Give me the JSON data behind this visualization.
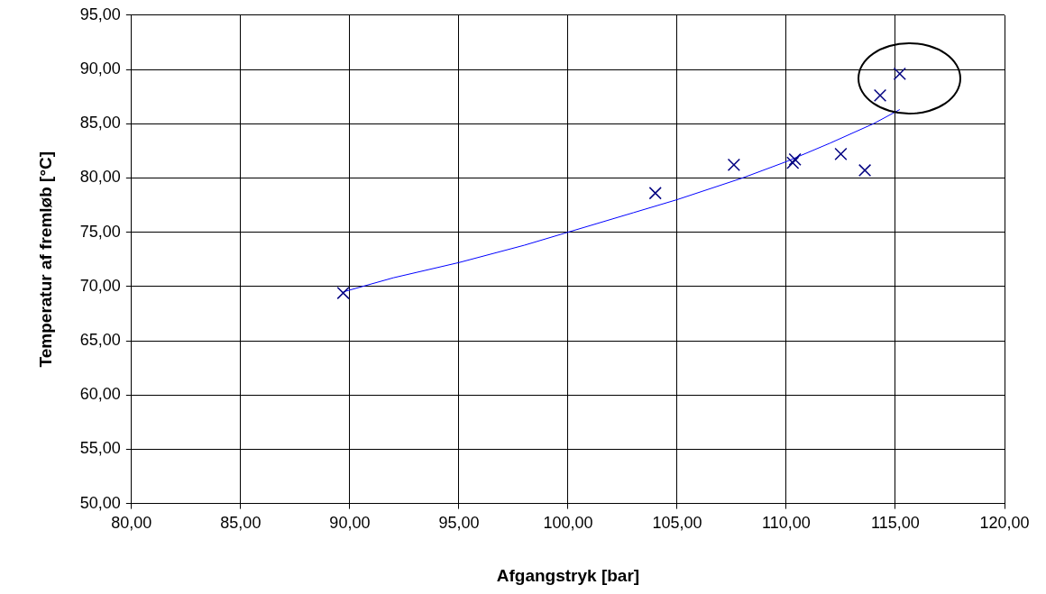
{
  "chart_data": {
    "type": "scatter",
    "xlabel": "Afgangstryk [bar]",
    "ylabel": "Temperatur af fremløb [°C]",
    "xlim": [
      80,
      120
    ],
    "ylim": [
      50,
      95
    ],
    "xticks": [
      {
        "value": 80,
        "label": "80,00"
      },
      {
        "value": 85,
        "label": "85,00"
      },
      {
        "value": 90,
        "label": "90,00"
      },
      {
        "value": 95,
        "label": "95,00"
      },
      {
        "value": 100,
        "label": "100,00"
      },
      {
        "value": 105,
        "label": "105,00"
      },
      {
        "value": 110,
        "label": "110,00"
      },
      {
        "value": 115,
        "label": "115,00"
      },
      {
        "value": 120,
        "label": "120,00"
      }
    ],
    "yticks": [
      {
        "value": 50,
        "label": "50,00"
      },
      {
        "value": 55,
        "label": "55,00"
      },
      {
        "value": 60,
        "label": "60,00"
      },
      {
        "value": 65,
        "label": "65,00"
      },
      {
        "value": 70,
        "label": "70,00"
      },
      {
        "value": 75,
        "label": "75,00"
      },
      {
        "value": 80,
        "label": "80,00"
      },
      {
        "value": 85,
        "label": "85,00"
      },
      {
        "value": 90,
        "label": "90,00"
      },
      {
        "value": 95,
        "label": "95,00"
      }
    ],
    "grid": true,
    "legend": false,
    "series": [
      {
        "type": "scatter",
        "color": "#000080",
        "marker": "cross",
        "x": [
          89.7,
          104.0,
          107.6,
          110.3,
          110.4,
          112.5,
          113.6,
          114.3,
          115.2
        ],
        "values": [
          69.4,
          78.6,
          81.2,
          81.4,
          81.7,
          82.2,
          80.7,
          87.6,
          89.6
        ]
      },
      {
        "type": "line",
        "color": "#0000ff",
        "marker": "none",
        "line_style": "solid",
        "x": [
          89.7,
          92,
          95,
          98,
          100,
          103,
          105,
          108,
          110,
          112,
          114,
          115.2
        ],
        "values": [
          69.5,
          70.8,
          72.2,
          73.8,
          75.0,
          76.8,
          78.0,
          80.0,
          81.5,
          83.2,
          85.0,
          86.3
        ]
      }
    ]
  }
}
